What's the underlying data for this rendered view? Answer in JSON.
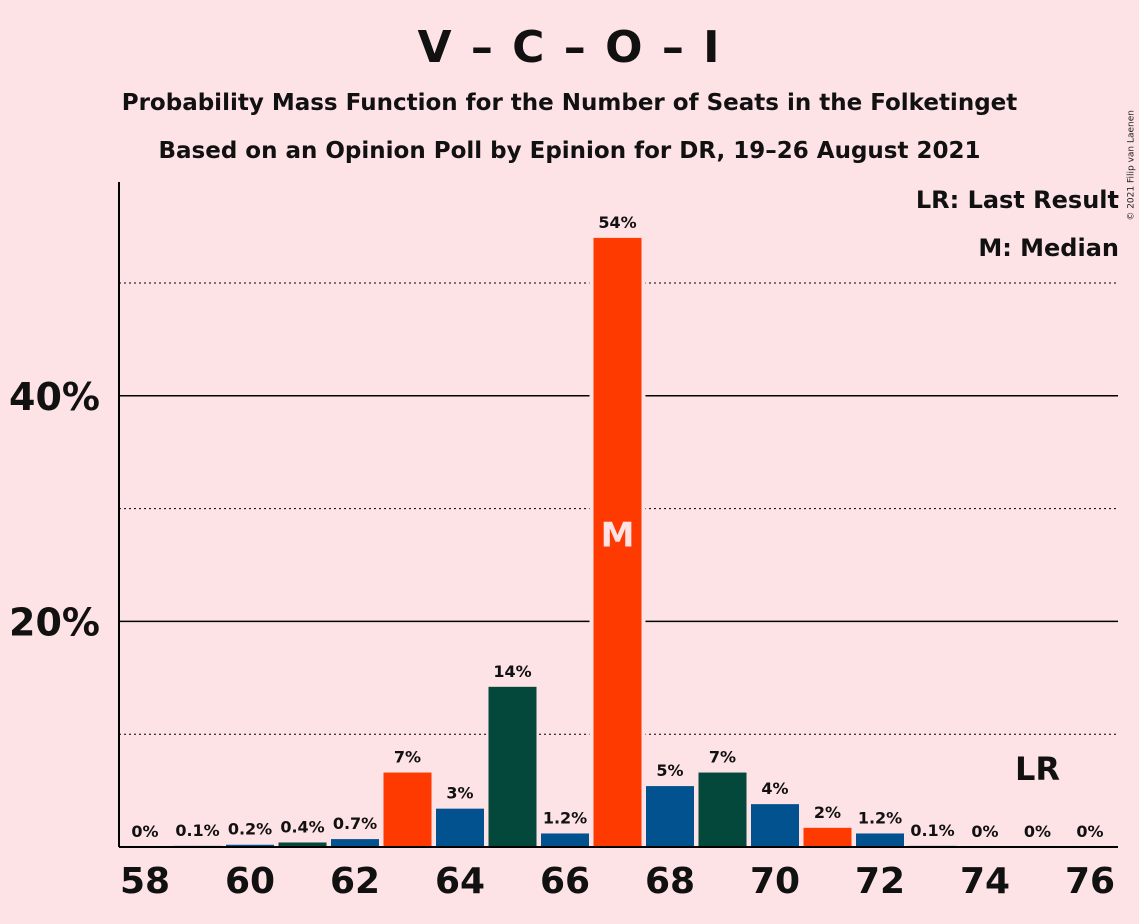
{
  "title": "V – C – O – I",
  "subtitle1": "Probability Mass Function for the Number of Seats in the Folketinget",
  "subtitle2": "Based on an Opinion Poll by Epinion for DR, 19–26 August 2021",
  "copyright": "© 2021 Filip van Laenen",
  "legend": {
    "last_result": "LR: Last Result",
    "median": "M: Median"
  },
  "colors": {
    "background": "#FDE2E6",
    "red": "#FF3A00",
    "blue": "#02528F",
    "green": "#03483B"
  },
  "chart_data": {
    "type": "bar",
    "title": "V – C – O – I",
    "xlabel": "",
    "ylabel": "",
    "ylim": [
      0,
      59
    ],
    "y_ticks": [
      {
        "value": 20,
        "label": "20%"
      },
      {
        "value": 40,
        "label": "40%"
      }
    ],
    "y_dotted_gridlines": [
      10,
      30,
      50
    ],
    "x_ticks": [
      "58",
      "60",
      "62",
      "64",
      "66",
      "68",
      "70",
      "72",
      "74",
      "76"
    ],
    "median_seat": 67,
    "median_marker": "M",
    "last_result_seat": 75,
    "last_result_marker": "LR",
    "bars": [
      {
        "seat": 58,
        "value": 0,
        "label": "0%",
        "color": "blue"
      },
      {
        "seat": 59,
        "value": 0.1,
        "label": "0.1%",
        "color": "blue"
      },
      {
        "seat": 60,
        "value": 0.2,
        "label": "0.2%",
        "color": "blue"
      },
      {
        "seat": 61,
        "value": 0.4,
        "label": "0.4%",
        "color": "green"
      },
      {
        "seat": 62,
        "value": 0.7,
        "label": "0.7%",
        "color": "blue"
      },
      {
        "seat": 63,
        "value": 6.6,
        "label": "7%",
        "color": "red"
      },
      {
        "seat": 64,
        "value": 3.4,
        "label": "3%",
        "color": "blue"
      },
      {
        "seat": 65,
        "value": 14.2,
        "label": "14%",
        "color": "green"
      },
      {
        "seat": 66,
        "value": 1.2,
        "label": "1.2%",
        "color": "blue"
      },
      {
        "seat": 67,
        "value": 54,
        "label": "54%",
        "color": "red"
      },
      {
        "seat": 68,
        "value": 5.4,
        "label": "5%",
        "color": "blue"
      },
      {
        "seat": 69,
        "value": 6.6,
        "label": "7%",
        "color": "green"
      },
      {
        "seat": 70,
        "value": 3.8,
        "label": "4%",
        "color": "blue"
      },
      {
        "seat": 71,
        "value": 1.7,
        "label": "2%",
        "color": "red"
      },
      {
        "seat": 72,
        "value": 1.2,
        "label": "1.2%",
        "color": "blue"
      },
      {
        "seat": 73,
        "value": 0.1,
        "label": "0.1%",
        "color": "blue"
      },
      {
        "seat": 74,
        "value": 0,
        "label": "0%",
        "color": "blue"
      },
      {
        "seat": 75,
        "value": 0,
        "label": "0%",
        "color": "blue"
      },
      {
        "seat": 76,
        "value": 0,
        "label": "0%",
        "color": "blue"
      }
    ]
  }
}
